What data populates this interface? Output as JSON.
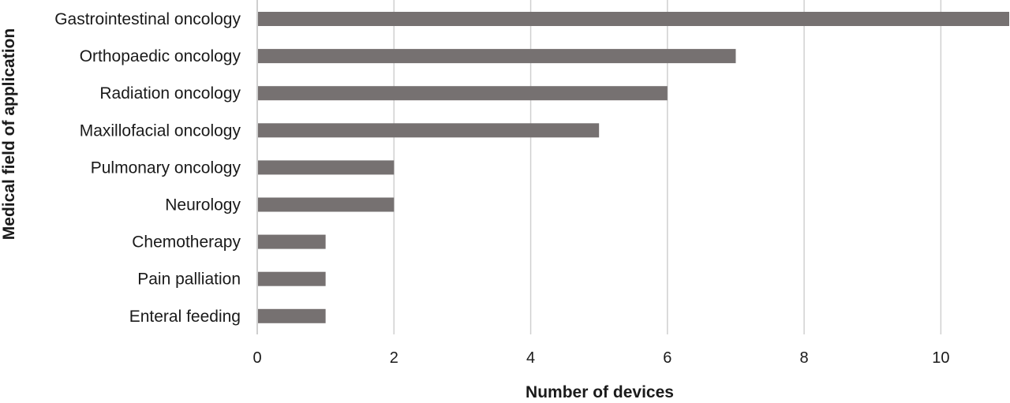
{
  "chart_data": {
    "type": "bar",
    "orientation": "horizontal",
    "categories": [
      "Gastrointestinal oncology",
      "Orthopaedic oncology",
      "Radiation oncology",
      "Maxillofacial oncology",
      "Pulmonary oncology",
      "Neurology",
      "Chemotherapy",
      "Pain palliation",
      "Enteral feeding"
    ],
    "values": [
      11,
      7,
      6,
      5,
      2,
      2,
      1,
      1,
      1
    ],
    "xlabel": "Number of devices",
    "ylabel": "Medical field of application",
    "xlim": [
      0,
      11
    ],
    "xticks": [
      "0",
      "2",
      "4",
      "6",
      "8",
      "10"
    ],
    "grid": "vertical",
    "legend": "none",
    "colors": {
      "bar": "#767171",
      "grid": "#d0d0d0",
      "axis": "#bfbfbf"
    }
  }
}
